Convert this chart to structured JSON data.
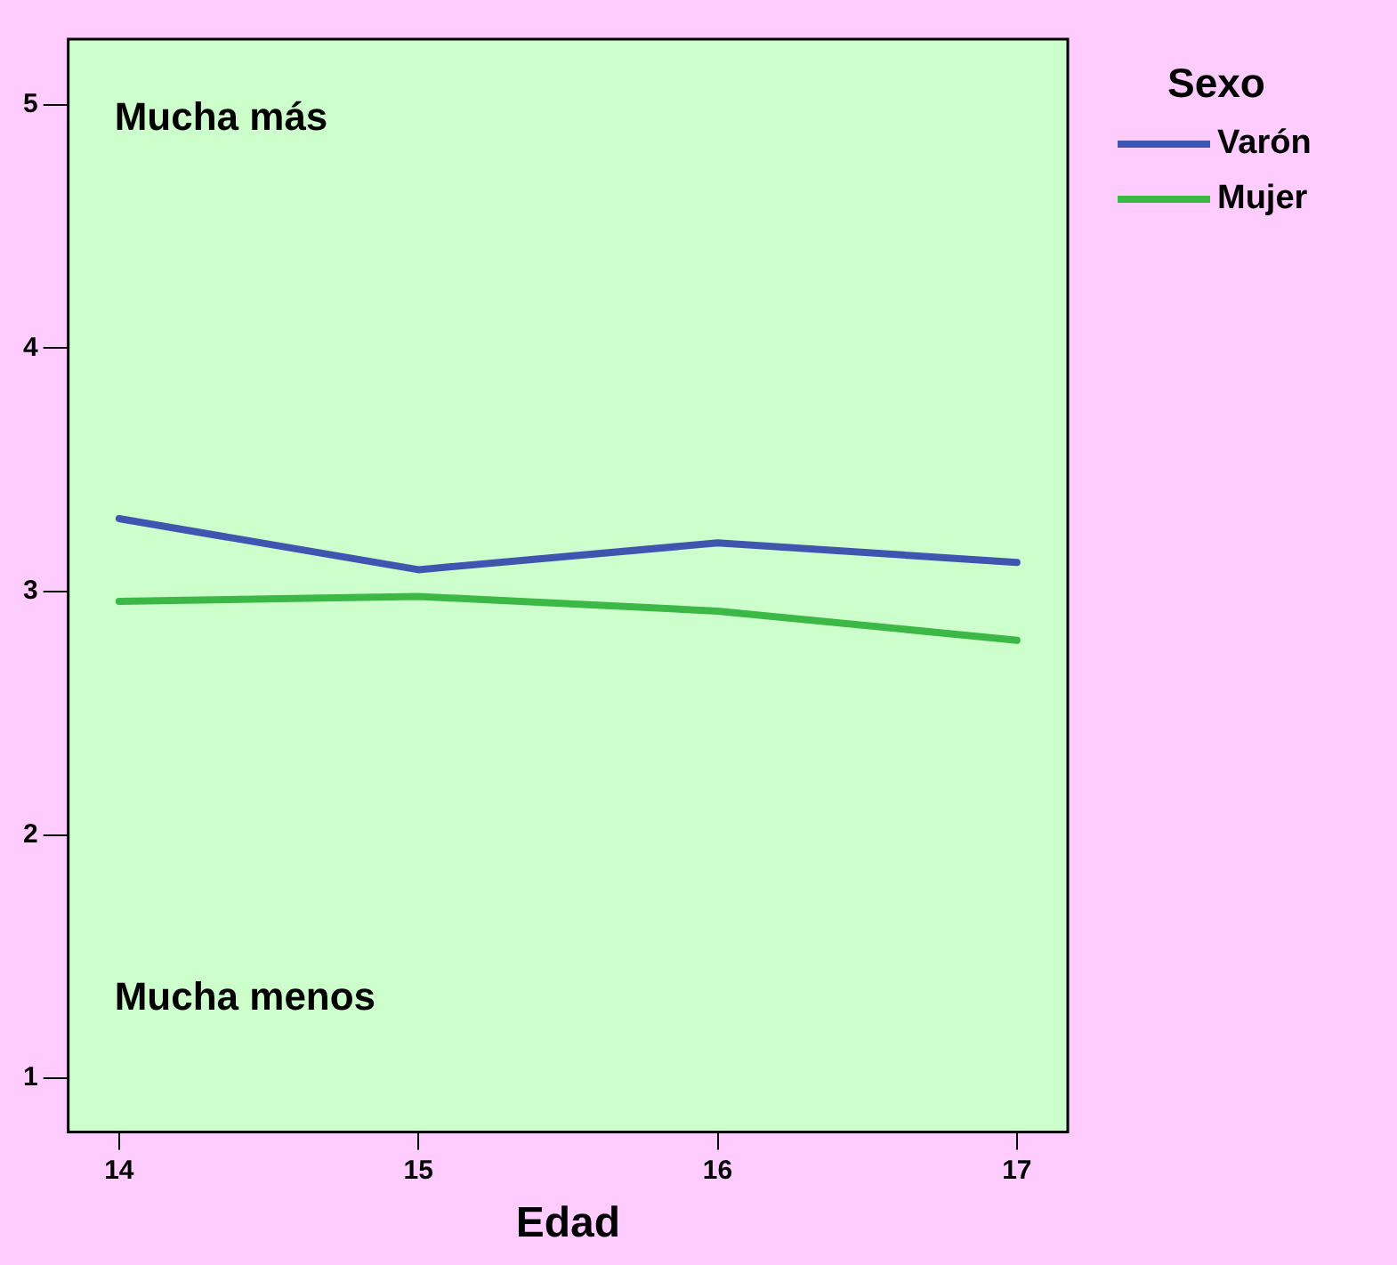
{
  "chart_data": {
    "type": "line",
    "xlabel": "Edad",
    "legend_title": "Sexo",
    "legend": "top right",
    "grid": false,
    "marker": "none",
    "line_style": "solid",
    "x": [
      14,
      15,
      16,
      17
    ],
    "series": [
      {
        "name": "Varón",
        "color": "#3f55b0",
        "values": [
          3.3,
          3.09,
          3.2,
          3.12
        ]
      },
      {
        "name": "Mujer",
        "color": "#3cb846",
        "values": [
          2.96,
          2.98,
          2.92,
          2.8
        ]
      }
    ],
    "xlim": [
      13.83,
      17.17
    ],
    "xticks": [
      14,
      15,
      16,
      17
    ],
    "ylim": [
      0.78,
      5.27
    ],
    "yticks": [
      1,
      2,
      3,
      4,
      5
    ],
    "annotations": [
      "Mucha más",
      "Mucha menos"
    ]
  }
}
